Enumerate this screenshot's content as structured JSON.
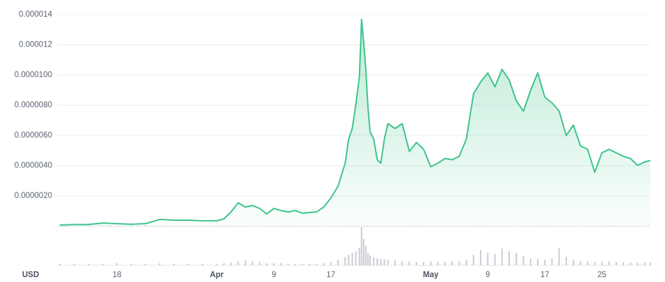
{
  "chart_data": {
    "type": "area",
    "currency": "USD",
    "color": "#3dc48a",
    "x": [
      10,
      12,
      14,
      16,
      18,
      20,
      22,
      24,
      26,
      28,
      30,
      32,
      33,
      34,
      35,
      36,
      37,
      38,
      39,
      40,
      41,
      42,
      43,
      44,
      45,
      46,
      47,
      48,
      49,
      50,
      50.5,
      51,
      51.5,
      52,
      52.3,
      52.6,
      52.9,
      53.2,
      53.5,
      54,
      54.5,
      55,
      55.5,
      56,
      57,
      58,
      59,
      60,
      61,
      62,
      63,
      64,
      65,
      66,
      67,
      68,
      69,
      70,
      71,
      72,
      73,
      74,
      75,
      76,
      77,
      78,
      79,
      80,
      81,
      82,
      83,
      84,
      85,
      86,
      87,
      88,
      89,
      90,
      91,
      92,
      92.8
    ],
    "values": [
      7e-08,
      1e-07,
      1e-07,
      2e-07,
      1.6e-07,
      1.2e-07,
      1.6e-07,
      4.4e-07,
      3.9e-07,
      3.9e-07,
      3.5e-07,
      3.5e-07,
      4.8e-07,
      9.4e-07,
      1.54e-06,
      1.26e-06,
      1.36e-06,
      1.17e-06,
      8e-07,
      1.17e-06,
      1.03e-06,
      9.4e-07,
      1.03e-06,
      8.5e-07,
      9e-07,
      9.4e-07,
      1.26e-06,
      1.86e-06,
      2.64e-06,
      4.16e-06,
      5.77e-06,
      6.46e-06,
      8.07e-06,
      9.91e-06,
      1.368e-05,
      1.22e-05,
      1.037e-05,
      7.84e-06,
      6.23e-06,
      5.77e-06,
      4.39e-06,
      4.16e-06,
      5.77e-06,
      6.78e-06,
      6.46e-06,
      6.78e-06,
      4.94e-06,
      5.54e-06,
      5.08e-06,
      3.93e-06,
      4.16e-06,
      4.48e-06,
      4.39e-06,
      4.62e-06,
      5.77e-06,
      8.76e-06,
      9.54e-06,
      1.014e-05,
      9.22e-06,
      1.037e-05,
      9.68e-06,
      8.3e-06,
      7.61e-06,
      8.99e-06,
      1.014e-05,
      8.53e-06,
      8.16e-06,
      7.61e-06,
      6e-06,
      6.69e-06,
      5.31e-06,
      5.08e-06,
      3.56e-06,
      4.85e-06,
      5.08e-06,
      4.85e-06,
      4.62e-06,
      4.48e-06,
      4.02e-06,
      4.25e-06,
      4.34e-06
    ],
    "volume": {
      "color": "#c9ccd3",
      "ylim": [
        0,
        60
      ],
      "values": [
        2,
        2,
        2,
        2,
        3,
        2,
        2,
        3,
        2,
        2,
        2,
        2,
        3,
        4,
        6,
        7,
        6,
        5,
        3,
        3,
        3,
        2,
        2,
        2,
        2,
        2,
        3,
        5,
        8,
        12,
        15,
        18,
        20,
        25,
        55,
        38,
        28,
        18,
        14,
        12,
        10,
        9,
        9,
        8,
        7,
        6,
        6,
        5,
        5,
        6,
        5,
        5,
        6,
        6,
        8,
        15,
        22,
        18,
        16,
        24,
        20,
        18,
        14,
        10,
        9,
        8,
        10,
        25,
        12,
        8,
        6,
        6,
        5,
        5,
        6,
        5,
        4,
        4,
        4,
        4,
        4
      ]
    },
    "xlim": [
      9.7,
      92.8
    ],
    "xticks": [
      {
        "value": 18,
        "label": "18"
      },
      {
        "value": 32,
        "label": "Apr"
      },
      {
        "value": 40,
        "label": "9"
      },
      {
        "value": 48,
        "label": "17"
      },
      {
        "value": 62,
        "label": "May"
      },
      {
        "value": 70,
        "label": "9"
      },
      {
        "value": 78,
        "label": "17"
      },
      {
        "value": 86,
        "label": "25"
      }
    ],
    "ylim": [
      0,
      1.45e-05
    ],
    "yticks": [
      {
        "value": 2e-06,
        "label": "0.0000020"
      },
      {
        "value": 4e-06,
        "label": "0.0000040"
      },
      {
        "value": 6e-06,
        "label": "0.0000060"
      },
      {
        "value": 8e-06,
        "label": "0.0000080"
      },
      {
        "value": 1e-05,
        "label": "0.0000100"
      },
      {
        "value": 1.2e-05,
        "label": "0.000012"
      },
      {
        "value": 1.4e-05,
        "label": "0.000014"
      }
    ],
    "grid": true
  }
}
